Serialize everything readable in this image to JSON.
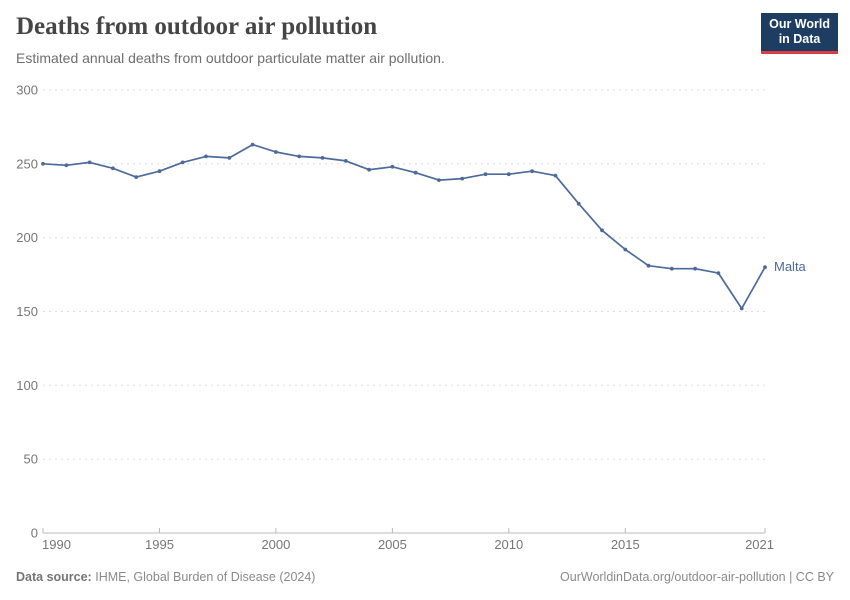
{
  "header": {
    "title": "Deaths from outdoor air pollution",
    "subtitle": "Estimated annual deaths from outdoor particulate matter air pollution.",
    "logo": {
      "line1": "Our World",
      "line2": "in Data",
      "bg_color": "#1d3d63",
      "accent_color": "#dc3d43"
    }
  },
  "chart_data": {
    "type": "line",
    "title": "Deaths from outdoor air pollution",
    "subtitle": "Estimated annual deaths from outdoor particulate matter air pollution.",
    "xlabel": "",
    "ylabel": "",
    "ylim": [
      0,
      300
    ],
    "yticks": [
      0,
      50,
      100,
      150,
      200,
      250,
      300
    ],
    "xticks": [
      1990,
      1995,
      2000,
      2005,
      2010,
      2015,
      2021
    ],
    "grid": "horizontal-dashed",
    "legend_position": "end-of-line-label",
    "grid_color": "#dedede",
    "axis_color": "#b9b9b9",
    "tick_label_color": "#767676",
    "series": [
      {
        "name": "Malta",
        "color": "#4C6A9C",
        "x": [
          1990,
          1991,
          1992,
          1993,
          1994,
          1995,
          1996,
          1997,
          1998,
          1999,
          2000,
          2001,
          2002,
          2003,
          2004,
          2005,
          2006,
          2007,
          2008,
          2009,
          2010,
          2011,
          2012,
          2013,
          2014,
          2015,
          2016,
          2017,
          2018,
          2019,
          2020,
          2021
        ],
        "values": [
          250,
          249,
          251,
          247,
          241,
          245,
          251,
          255,
          254,
          263,
          258,
          255,
          254,
          252,
          246,
          248,
          244,
          239,
          240,
          243,
          243,
          245,
          242,
          223,
          205,
          192,
          181,
          179,
          179,
          176,
          152,
          180
        ]
      }
    ]
  },
  "footer": {
    "source_label": "Data source:",
    "source_value": "IHME, Global Burden of Disease (2024)",
    "rights": "OurWorldinData.org/outdoor-air-pollution | CC BY"
  }
}
